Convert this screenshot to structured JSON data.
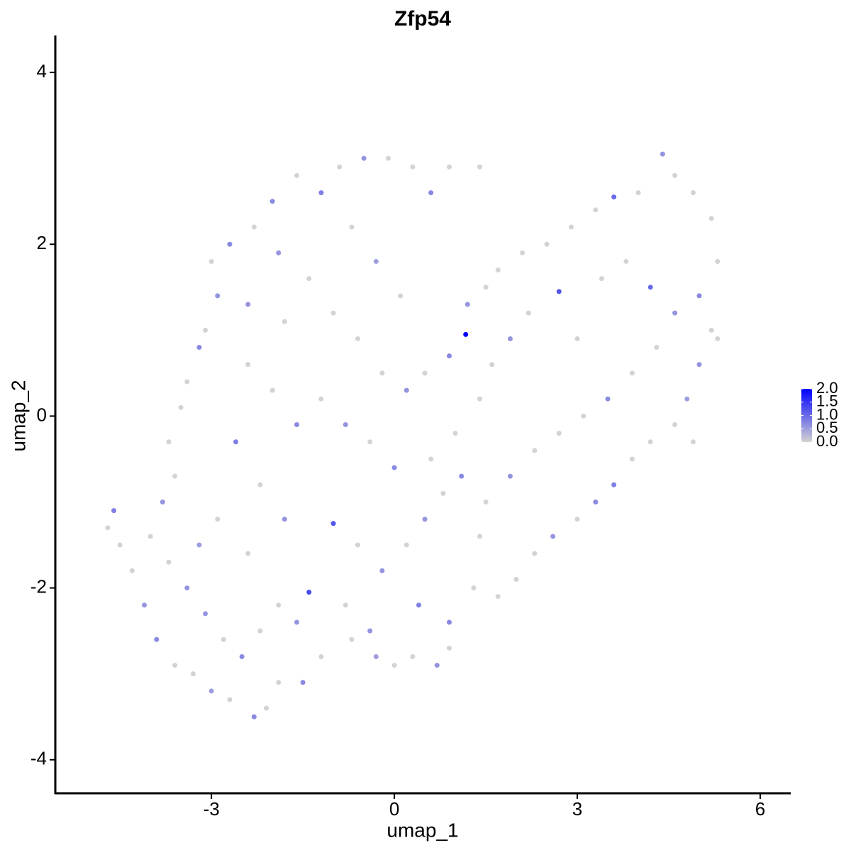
{
  "chart_data": {
    "type": "scatter",
    "title": "Zfp54",
    "x_label": "umap_1",
    "y_label": "umap_2",
    "xlim": [
      -5.56,
      6.5
    ],
    "ylim": [
      -4.39,
      4.43
    ],
    "xticks": [
      -3,
      0,
      3,
      6
    ],
    "yticks": [
      -4,
      -2,
      0,
      2,
      4
    ],
    "color_low": "#d3d3d3",
    "color_high": "#0000ff",
    "clim": [
      0,
      2
    ],
    "cticks": [
      {
        "value": 0,
        "label": "0.0"
      },
      0.5,
      {
        "value": 1,
        "label": "1.0"
      },
      1.5,
      {
        "value": 2,
        "label": "2.0"
      }
    ],
    "x": [
      -4.6,
      -4.7,
      -4.5,
      -4.3,
      -4.1,
      -3.9,
      -3.6,
      -3.3,
      -3.0,
      -2.7,
      -2.3,
      -2.1,
      -1.9,
      -1.5,
      -1.2,
      -0.7,
      -0.3,
      0.0,
      0.3,
      0.7,
      0.9,
      0.9,
      1.3,
      1.7,
      2.0,
      2.3,
      2.6,
      3.0,
      3.3,
      3.6,
      3.9,
      4.2,
      4.6,
      4.8,
      5.0,
      5.2,
      5.0,
      5.3,
      5.2,
      4.9,
      4.6,
      4.4,
      4.0,
      3.6,
      3.3,
      2.9,
      2.5,
      2.1,
      1.7,
      1.5,
      1.2,
      1.17,
      0.9,
      0.5,
      0.2,
      -0.2,
      -0.6,
      -1.0,
      -1.4,
      -1.9,
      -2.3,
      -2.0,
      -1.6,
      -1.2,
      -0.9,
      -0.5,
      -0.1,
      0.3,
      0.6,
      0.9,
      1.4,
      -2.7,
      -3.0,
      -2.9,
      -3.1,
      -3.2,
      -3.4,
      -3.5,
      -3.7,
      -3.6,
      -3.8,
      -4.0,
      -3.7,
      -3.4,
      -3.1,
      -2.8,
      -2.5,
      -2.2,
      -1.9,
      -1.6,
      -1.4,
      -1.0,
      -0.6,
      -0.2,
      0.2,
      0.5,
      0.8,
      1.1,
      1.5,
      1.9,
      2.3,
      2.7,
      3.1,
      3.5,
      3.9,
      4.3,
      4.6,
      4.2,
      3.8,
      3.4,
      2.7,
      2.2,
      1.9,
      1.6,
      1.4,
      1.0,
      0.6,
      0.0,
      -0.4,
      -0.8,
      -1.2,
      -1.6,
      -2.0,
      -2.4,
      -2.6,
      -2.2,
      -1.8,
      -2.4,
      -2.9,
      -3.2,
      -0.8,
      -0.4,
      0.4,
      1.4,
      -1.8,
      -2.4,
      -0.3,
      0.1,
      -0.7,
      3.0,
      4.9,
      5.3
    ],
    "y": [
      -1.1,
      -1.3,
      -1.5,
      -1.8,
      -2.2,
      -2.6,
      -2.9,
      -3.0,
      -3.2,
      -3.3,
      -3.5,
      -3.4,
      -3.1,
      -3.1,
      -2.8,
      -2.6,
      -2.8,
      -2.9,
      -2.8,
      -2.9,
      -2.7,
      -2.4,
      -2.0,
      -2.1,
      -1.9,
      -1.6,
      -1.4,
      -1.2,
      -1.0,
      -0.8,
      -0.5,
      -0.3,
      -0.1,
      0.2,
      0.6,
      1.0,
      1.4,
      1.8,
      2.3,
      2.6,
      2.8,
      3.05,
      2.6,
      2.55,
      2.4,
      2.2,
      2.0,
      1.9,
      1.7,
      1.5,
      1.3,
      0.95,
      0.7,
      0.5,
      0.3,
      0.5,
      0.9,
      1.2,
      1.6,
      1.9,
      2.2,
      2.5,
      2.8,
      2.6,
      2.9,
      3.0,
      3.0,
      2.9,
      2.6,
      2.9,
      2.9,
      2.0,
      1.8,
      1.4,
      1.0,
      0.8,
      0.4,
      0.1,
      -0.3,
      -0.7,
      -1.0,
      -1.4,
      -1.7,
      -2.0,
      -2.3,
      -2.6,
      -2.8,
      -2.5,
      -2.2,
      -2.4,
      -2.05,
      -1.25,
      -1.5,
      -1.8,
      -1.5,
      -1.2,
      -0.9,
      -0.7,
      -1.0,
      -0.7,
      -0.4,
      -0.2,
      0.0,
      0.2,
      0.5,
      0.8,
      1.2,
      1.5,
      1.8,
      1.6,
      1.45,
      1.2,
      0.9,
      0.6,
      0.2,
      -0.2,
      -0.5,
      -0.6,
      -0.3,
      -0.1,
      0.2,
      -0.1,
      0.3,
      0.6,
      -0.3,
      -0.8,
      -1.2,
      -1.6,
      -1.2,
      -1.5,
      -2.2,
      -2.5,
      -2.2,
      -1.4,
      1.1,
      1.3,
      1.8,
      1.4,
      2.2,
      0.9,
      -0.3,
      0.9
    ],
    "values": [
      0.8,
      0,
      0,
      0,
      0.6,
      0.7,
      0,
      0,
      0.5,
      0,
      0.7,
      0,
      0,
      0.7,
      0,
      0,
      0.5,
      0,
      0,
      0.6,
      0,
      0.7,
      0,
      0,
      0,
      0,
      0.6,
      0,
      0.7,
      0.8,
      0,
      0,
      0,
      0.5,
      0.6,
      0,
      0.7,
      0,
      0,
      0,
      0,
      0.6,
      0,
      1.0,
      0,
      0,
      0,
      0,
      0,
      0,
      0.6,
      2.0,
      0.7,
      0,
      0.6,
      0,
      0,
      0,
      0,
      0.6,
      0,
      0.7,
      0,
      0.8,
      0,
      0.6,
      0,
      0,
      0.7,
      0,
      0,
      0.7,
      0,
      0.6,
      0,
      0.7,
      0,
      0,
      0,
      0,
      0.6,
      0,
      0,
      0.6,
      0.6,
      0,
      0.7,
      0,
      0,
      0.6,
      1.3,
      1.2,
      0,
      0.6,
      0,
      0.6,
      0,
      0.7,
      0,
      0.6,
      0,
      0,
      0,
      0.7,
      0,
      0,
      0.6,
      1.0,
      0,
      0,
      1.2,
      0,
      0.6,
      0,
      0,
      0,
      0,
      0.7,
      0,
      0.6,
      0,
      0.7,
      0,
      0,
      0.8,
      0,
      0.6,
      0,
      0,
      0.5,
      0,
      0.6,
      0.8,
      0,
      0,
      0.6,
      0.5,
      0,
      0,
      0,
      0,
      0
    ]
  }
}
